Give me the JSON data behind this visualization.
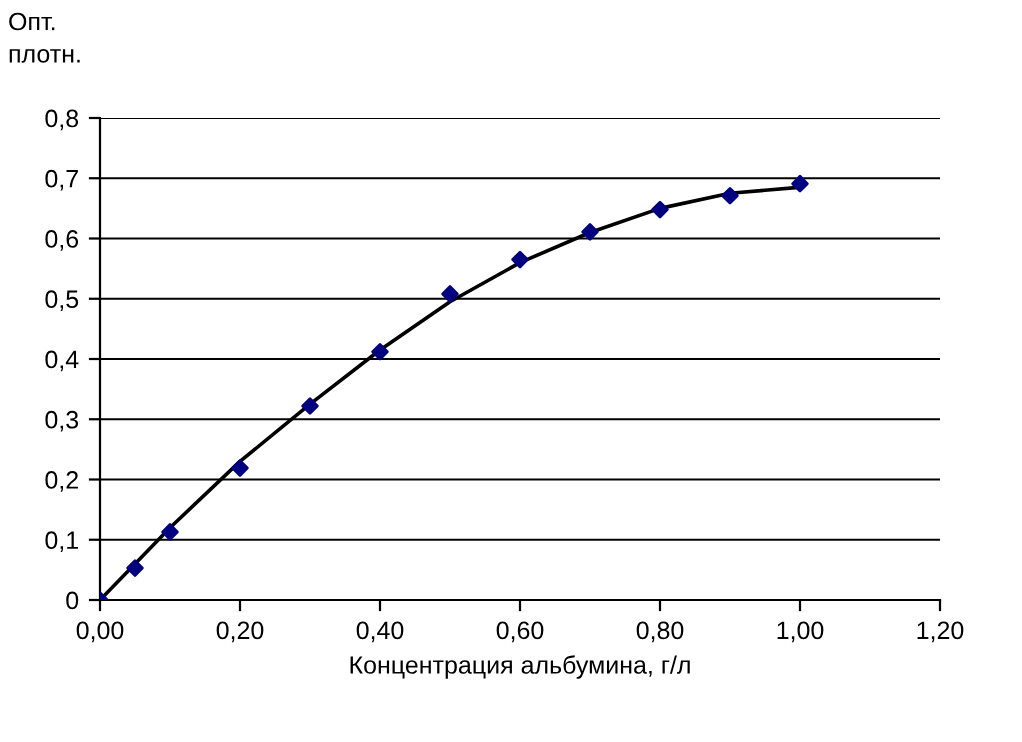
{
  "chart_data": {
    "type": "scatter",
    "ylabel": "Опт.\nплотн.",
    "xlabel": "Концентрация альбумина, г/л",
    "series": [
      {
        "color": "#000080",
        "marker": "diamond",
        "x": [
          0,
          0.05,
          0.1,
          0.2,
          0.3,
          0.4,
          0.5,
          0.6,
          0.7,
          0.8,
          0.9,
          1.0
        ],
        "values": [
          0,
          0.053,
          0.113,
          0.219,
          0.322,
          0.412,
          0.508,
          0.565,
          0.611,
          0.648,
          0.671,
          0.691
        ]
      },
      {
        "type": "line",
        "color": "#000000",
        "marker": "none",
        "line_style": "solid",
        "x": [
          0,
          0.1,
          0.2,
          0.3,
          0.4,
          0.5,
          0.6,
          0.7,
          0.8,
          0.9,
          1.0
        ],
        "values": [
          0,
          0.12,
          0.23,
          0.325,
          0.415,
          0.495,
          0.56,
          0.61,
          0.65,
          0.675,
          0.685
        ]
      }
    ],
    "xlim": [
      0,
      1.2
    ],
    "xticks": [
      {
        "value": 0,
        "label": "0,00"
      },
      {
        "value": 0.2,
        "label": "0,20"
      },
      {
        "value": 0.4,
        "label": "0,40"
      },
      {
        "value": 0.6,
        "label": "0,60"
      },
      {
        "value": 0.8,
        "label": "0,80"
      },
      {
        "value": 1.0,
        "label": "1,00"
      },
      {
        "value": 1.2,
        "label": "1,20"
      }
    ],
    "ylim": [
      0,
      0.8
    ],
    "yticks": [
      0,
      {
        "value": 0.1,
        "label": "0,1"
      },
      {
        "value": 0.2,
        "label": "0,2"
      },
      {
        "value": 0.3,
        "label": "0,3"
      },
      {
        "value": 0.4,
        "label": "0,4"
      },
      {
        "value": 0.5,
        "label": "0,5"
      },
      {
        "value": 0.6,
        "label": "0,6"
      },
      {
        "value": 0.7,
        "label": "0,7"
      },
      {
        "value": 0.8,
        "label": "0,8"
      }
    ],
    "grid": "y",
    "legend": false
  }
}
